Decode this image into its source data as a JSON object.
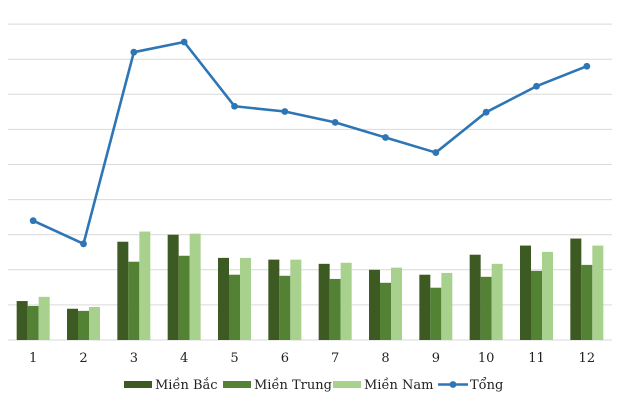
{
  "chart_data": {
    "type": "bar+line",
    "title": "",
    "xlabel": "",
    "ylabel": "",
    "categories": [
      "1",
      "2",
      "3",
      "4",
      "5",
      "6",
      "7",
      "8",
      "9",
      "10",
      "11",
      "12"
    ],
    "ylim": [
      0,
      9
    ],
    "grid": true,
    "y_tick_labels_shown": false,
    "legend_position": "bottom",
    "series": [
      {
        "name": "Miền Bắc",
        "kind": "bar",
        "color": "#3d5a23",
        "values": [
          1.11,
          0.89,
          2.8,
          3.0,
          2.34,
          2.29,
          2.17,
          2.0,
          1.86,
          2.43,
          2.69,
          2.89
        ]
      },
      {
        "name": "Miền Trung",
        "kind": "bar",
        "color": "#548235",
        "values": [
          0.97,
          0.83,
          2.23,
          2.4,
          1.86,
          1.83,
          1.74,
          1.63,
          1.49,
          1.8,
          1.97,
          2.14
        ]
      },
      {
        "name": "Miền Nam",
        "kind": "bar",
        "color": "#a9d18e",
        "values": [
          1.23,
          0.94,
          3.09,
          3.03,
          2.34,
          2.29,
          2.2,
          2.06,
          1.91,
          2.17,
          2.51,
          2.69
        ]
      },
      {
        "name": "Tổng",
        "kind": "line",
        "color": "#2e75b6",
        "values": [
          3.4,
          2.74,
          8.2,
          8.49,
          6.66,
          6.51,
          6.2,
          5.77,
          5.34,
          6.49,
          7.23,
          7.8
        ]
      }
    ]
  }
}
